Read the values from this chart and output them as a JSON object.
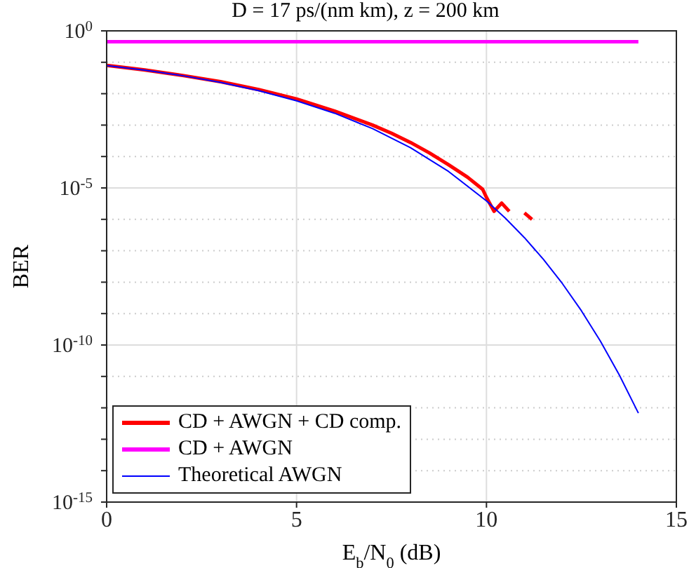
{
  "chart_data": {
    "type": "line",
    "title": "D = 17 ps/(nm km), z = 200 km",
    "xlabel": "E$_{b}$/N$_{0}$ (dB)",
    "ylabel": "BER",
    "log": "y",
    "grid": true,
    "legend": "bottom left",
    "xlim": [
      0,
      15
    ],
    "xticks": [
      0,
      5,
      10,
      15
    ],
    "ylim": [
      1e-15,
      1
    ],
    "yticks": [
      {
        "value": 1,
        "label": "10$^{0}$"
      },
      {
        "value": 0.1,
        "label": null
      },
      {
        "value": 0.01,
        "label": null
      },
      {
        "value": 0.001,
        "label": null
      },
      {
        "value": 0.0001,
        "label": null
      },
      {
        "value": 1e-05,
        "label": "10$^{-5}$"
      },
      {
        "value": 1e-06,
        "label": null
      },
      {
        "value": 1e-07,
        "label": null
      },
      {
        "value": 1e-08,
        "label": null
      },
      {
        "value": 1e-09,
        "label": null
      },
      {
        "value": 1e-10,
        "label": "10$^{-10}$"
      },
      {
        "value": 1e-11,
        "label": null
      },
      {
        "value": 1e-12,
        "label": null
      },
      {
        "value": 1e-13,
        "label": null
      },
      {
        "value": 1e-14,
        "label": null
      },
      {
        "value": 1e-15,
        "label": "10$^{-15}$"
      }
    ],
    "series": [
      {
        "name": "CD + AWGN + CD comp.",
        "color": "#ff0000",
        "x": [
          0,
          1,
          2,
          3,
          4,
          5,
          6,
          7,
          7.5,
          8,
          8.5,
          9,
          9.5,
          9.9,
          10,
          10.2,
          10.4,
          10.6,
          10.8,
          11,
          11.2
        ],
        "values": [
          0.08,
          0.057,
          0.038,
          0.024,
          0.0135,
          0.0068,
          0.0028,
          0.001,
          0.00055,
          0.00028,
          0.00013,
          5.5e-05,
          2.2e-05,
          9e-06,
          5e-06,
          1.8e-06,
          3.3e-06,
          1.8e-06,
          null,
          1.6e-06,
          1e-06
        ]
      },
      {
        "name": "CD + AWGN",
        "color": "#ff00ff",
        "x": [
          0,
          14
        ],
        "values": [
          0.45,
          0.45
        ]
      },
      {
        "name": "Theoretical AWGN",
        "color": "#0000ff",
        "x": [
          0,
          1,
          2,
          3,
          4,
          5,
          6,
          7,
          8,
          9,
          10,
          10.5,
          11,
          11.5,
          12,
          12.5,
          13,
          13.5,
          14
        ],
        "values": [
          0.0786,
          0.0563,
          0.0375,
          0.0229,
          0.0125,
          0.00595,
          0.00239,
          0.000773,
          0.000191,
          3.36e-05,
          3.87e-06,
          1.08e-06,
          2.61e-07,
          5.3e-08,
          9e-09,
          1.23e-09,
          1.33e-10,
          1.1e-11,
          6.8e-13
        ]
      }
    ]
  }
}
